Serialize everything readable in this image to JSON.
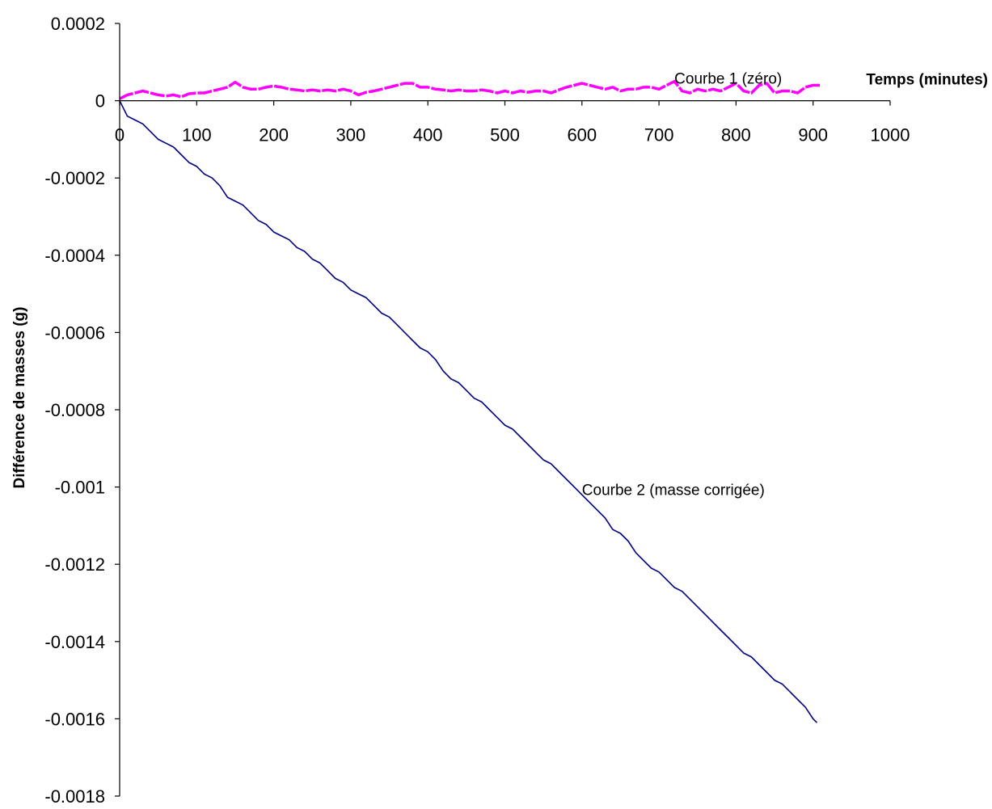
{
  "chart_data": {
    "type": "line",
    "title": "",
    "xlabel": "Temps (minutes)",
    "ylabel": "Différence de masses (g)",
    "xlim": [
      0,
      1000
    ],
    "ylim": [
      -0.0018,
      0.0002
    ],
    "x_ticks": [
      0,
      100,
      200,
      300,
      400,
      500,
      600,
      700,
      800,
      900,
      1000
    ],
    "x_tick_labels": [
      "0",
      "100",
      "200",
      "300",
      "400",
      "500",
      "600",
      "700",
      "800",
      "900",
      "1000"
    ],
    "y_ticks": [
      0.0002,
      0,
      -0.0002,
      -0.0004,
      -0.0006,
      -0.0008,
      -0.001,
      -0.0012,
      -0.0014,
      -0.0016,
      -0.0018
    ],
    "y_tick_labels": [
      "0.0002",
      "0",
      "-0.0002",
      "-0.0004",
      "-0.0006",
      "-0.0008",
      "-0.001",
      "-0.0012",
      "-0.0014",
      "-0.0016",
      "-0.0018"
    ],
    "grid": false,
    "legend": "none",
    "series": [
      {
        "name": "Courbe 1 (zéro)",
        "color": "#ff00ff",
        "x": [
          0,
          10,
          20,
          30,
          40,
          50,
          60,
          70,
          80,
          90,
          100,
          110,
          120,
          130,
          140,
          150,
          160,
          170,
          180,
          190,
          200,
          210,
          220,
          230,
          240,
          250,
          260,
          270,
          280,
          290,
          300,
          310,
          320,
          330,
          340,
          350,
          360,
          370,
          380,
          390,
          400,
          410,
          420,
          430,
          440,
          450,
          460,
          470,
          480,
          490,
          500,
          510,
          520,
          530,
          540,
          550,
          560,
          570,
          580,
          590,
          600,
          610,
          620,
          630,
          640,
          650,
          660,
          670,
          680,
          690,
          700,
          710,
          720,
          730,
          740,
          750,
          760,
          770,
          780,
          790,
          800,
          810,
          820,
          830,
          840,
          850,
          860,
          870,
          880,
          890,
          900,
          910
        ],
        "y": [
          5e-06,
          1.5e-05,
          2e-05,
          2.5e-05,
          2e-05,
          1.5e-05,
          1.2e-05,
          1.5e-05,
          1e-05,
          1.8e-05,
          2e-05,
          2e-05,
          2.5e-05,
          3e-05,
          3.5e-05,
          4.8e-05,
          3.5e-05,
          3e-05,
          3e-05,
          3.5e-05,
          3.8e-05,
          3.5e-05,
          3e-05,
          2.8e-05,
          2.5e-05,
          2.8e-05,
          2.5e-05,
          2.8e-05,
          2.5e-05,
          3e-05,
          2.5e-05,
          1.5e-05,
          2.2e-05,
          2.5e-05,
          3e-05,
          3.5e-05,
          4e-05,
          4.5e-05,
          4.5e-05,
          3.5e-05,
          3.5e-05,
          3e-05,
          2.8e-05,
          2.5e-05,
          2.8e-05,
          2.5e-05,
          2.5e-05,
          2.8e-05,
          2.5e-05,
          2e-05,
          2.5e-05,
          2e-05,
          2.5e-05,
          2.2e-05,
          2.5e-05,
          2.5e-05,
          2e-05,
          2.8e-05,
          3.5e-05,
          4e-05,
          4.5e-05,
          4e-05,
          3.5e-05,
          3e-05,
          3.5e-05,
          2.5e-05,
          3e-05,
          3e-05,
          3.5e-05,
          3.5e-05,
          3e-05,
          4e-05,
          5e-05,
          2.5e-05,
          2e-05,
          3e-05,
          2.5e-05,
          3e-05,
          2.5e-05,
          3.5e-05,
          4.5e-05,
          2.5e-05,
          2e-05,
          4e-05,
          4.5e-05,
          2e-05,
          2.5e-05,
          2.5e-05,
          2e-05,
          3.5e-05,
          4e-05,
          4e-05
        ]
      },
      {
        "name": "Courbe 2 (masse corrigée)",
        "color": "#000080",
        "x": [
          0,
          10,
          20,
          30,
          40,
          50,
          60,
          70,
          80,
          90,
          100,
          110,
          120,
          130,
          140,
          150,
          160,
          170,
          180,
          190,
          200,
          210,
          220,
          230,
          240,
          250,
          260,
          270,
          280,
          290,
          300,
          310,
          320,
          330,
          340,
          350,
          360,
          370,
          380,
          390,
          400,
          410,
          420,
          430,
          440,
          450,
          460,
          470,
          480,
          490,
          500,
          510,
          520,
          530,
          540,
          550,
          560,
          570,
          580,
          590,
          600,
          610,
          620,
          630,
          640,
          650,
          660,
          670,
          680,
          690,
          700,
          710,
          720,
          730,
          740,
          750,
          760,
          770,
          780,
          790,
          800,
          810,
          820,
          830,
          840,
          850,
          860,
          870,
          880,
          890,
          900,
          905
        ],
        "y": [
          0,
          -4e-05,
          -5e-05,
          -6e-05,
          -8e-05,
          -0.0001,
          -0.00011,
          -0.00012,
          -0.00014,
          -0.00016,
          -0.00017,
          -0.00019,
          -0.0002,
          -0.00022,
          -0.00025,
          -0.00026,
          -0.00027,
          -0.00029,
          -0.00031,
          -0.00032,
          -0.00034,
          -0.00035,
          -0.00036,
          -0.00038,
          -0.00039,
          -0.00041,
          -0.00042,
          -0.00044,
          -0.00046,
          -0.00047,
          -0.00049,
          -0.0005,
          -0.00051,
          -0.00053,
          -0.00055,
          -0.00056,
          -0.00058,
          -0.0006,
          -0.00062,
          -0.00064,
          -0.00065,
          -0.00067,
          -0.0007,
          -0.00072,
          -0.00073,
          -0.00075,
          -0.00077,
          -0.00078,
          -0.0008,
          -0.00082,
          -0.00084,
          -0.00085,
          -0.00087,
          -0.00089,
          -0.00091,
          -0.00093,
          -0.00094,
          -0.00096,
          -0.00098,
          -0.001,
          -0.00102,
          -0.00104,
          -0.00106,
          -0.00108,
          -0.00111,
          -0.00112,
          -0.00114,
          -0.00117,
          -0.00119,
          -0.00121,
          -0.00122,
          -0.00124,
          -0.00126,
          -0.00127,
          -0.00129,
          -0.00131,
          -0.00133,
          -0.00135,
          -0.00137,
          -0.00139,
          -0.00141,
          -0.00143,
          -0.00144,
          -0.00146,
          -0.00148,
          -0.0015,
          -0.00151,
          -0.00153,
          -0.00155,
          -0.00157,
          -0.0016,
          -0.00161
        ]
      }
    ],
    "annotations": [
      {
        "text": "Courbe 1 (zéro)",
        "x": 720,
        "y": 5.5e-05
      },
      {
        "text": "Courbe 2 (masse corrigée)",
        "x": 600,
        "y": -0.00101
      }
    ]
  }
}
